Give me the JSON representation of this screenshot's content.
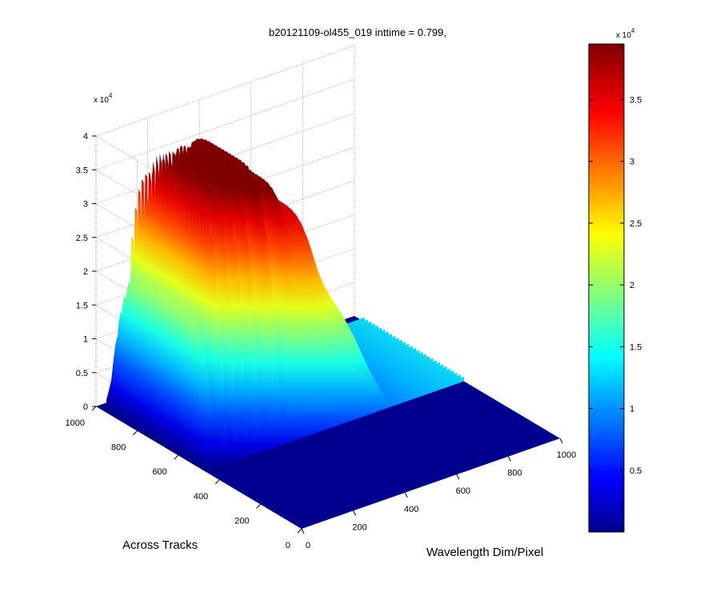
{
  "chart_data": {
    "type": "surface",
    "title": "b20121109-ol455_019 inttime = 0.799,",
    "xlabel": "Wavelength Dim/Pixel",
    "ylabel": "Across Tracks",
    "zlabel": "",
    "x_range": [
      0,
      1000
    ],
    "y_range": [
      0,
      1000
    ],
    "z_range": [
      0,
      40000
    ],
    "x_ticks": [
      "0",
      "200",
      "400",
      "600",
      "800",
      "1000"
    ],
    "y_ticks": [
      "0",
      "200",
      "400",
      "600",
      "800",
      "1000"
    ],
    "z_ticks": [
      "0",
      "0.5",
      "1",
      "1.5",
      "2",
      "2.5",
      "3",
      "3.5",
      "4"
    ],
    "z_exponent": "x 10",
    "z_exponent_power": "4",
    "colorbar": {
      "exponent": "x 10",
      "exponent_power": "4",
      "range": [
        0,
        39500
      ],
      "ticks": [
        "0.5",
        "1",
        "1.5",
        "2",
        "2.5",
        "3",
        "3.5"
      ],
      "colormap": "jet"
    },
    "grid": true,
    "surface": {
      "active_x_range": [
        0,
        700
      ],
      "active_y_range": [
        460,
        960
      ],
      "baseline": 700,
      "bands": [
        {
          "x": 30,
          "width": 18,
          "amplitude": 21000
        },
        {
          "x": 75,
          "width": 14,
          "amplitude": 37000
        },
        {
          "x": 115,
          "width": 12,
          "amplitude": 38000
        },
        {
          "x": 150,
          "width": 14,
          "amplitude": 38500
        },
        {
          "x": 195,
          "width": 18,
          "amplitude": 37500
        },
        {
          "x": 250,
          "width": 30,
          "amplitude": 36000
        },
        {
          "x": 330,
          "width": 45,
          "amplitude": 31000
        },
        {
          "x": 430,
          "width": 50,
          "amplitude": 24000
        },
        {
          "x": 530,
          "width": 60,
          "amplitude": 15000
        },
        {
          "x": 630,
          "width": 50,
          "amplitude": 7000
        }
      ],
      "absorption_dips": [
        {
          "x": 55,
          "width": 6,
          "depth": 0.85
        },
        {
          "x": 95,
          "width": 6,
          "depth": 0.8
        },
        {
          "x": 135,
          "width": 5,
          "depth": 0.75
        },
        {
          "x": 175,
          "width": 6,
          "depth": 0.7
        },
        {
          "x": 225,
          "width": 8,
          "depth": 0.65
        },
        {
          "x": 300,
          "width": 10,
          "depth": 0.5
        }
      ]
    }
  }
}
